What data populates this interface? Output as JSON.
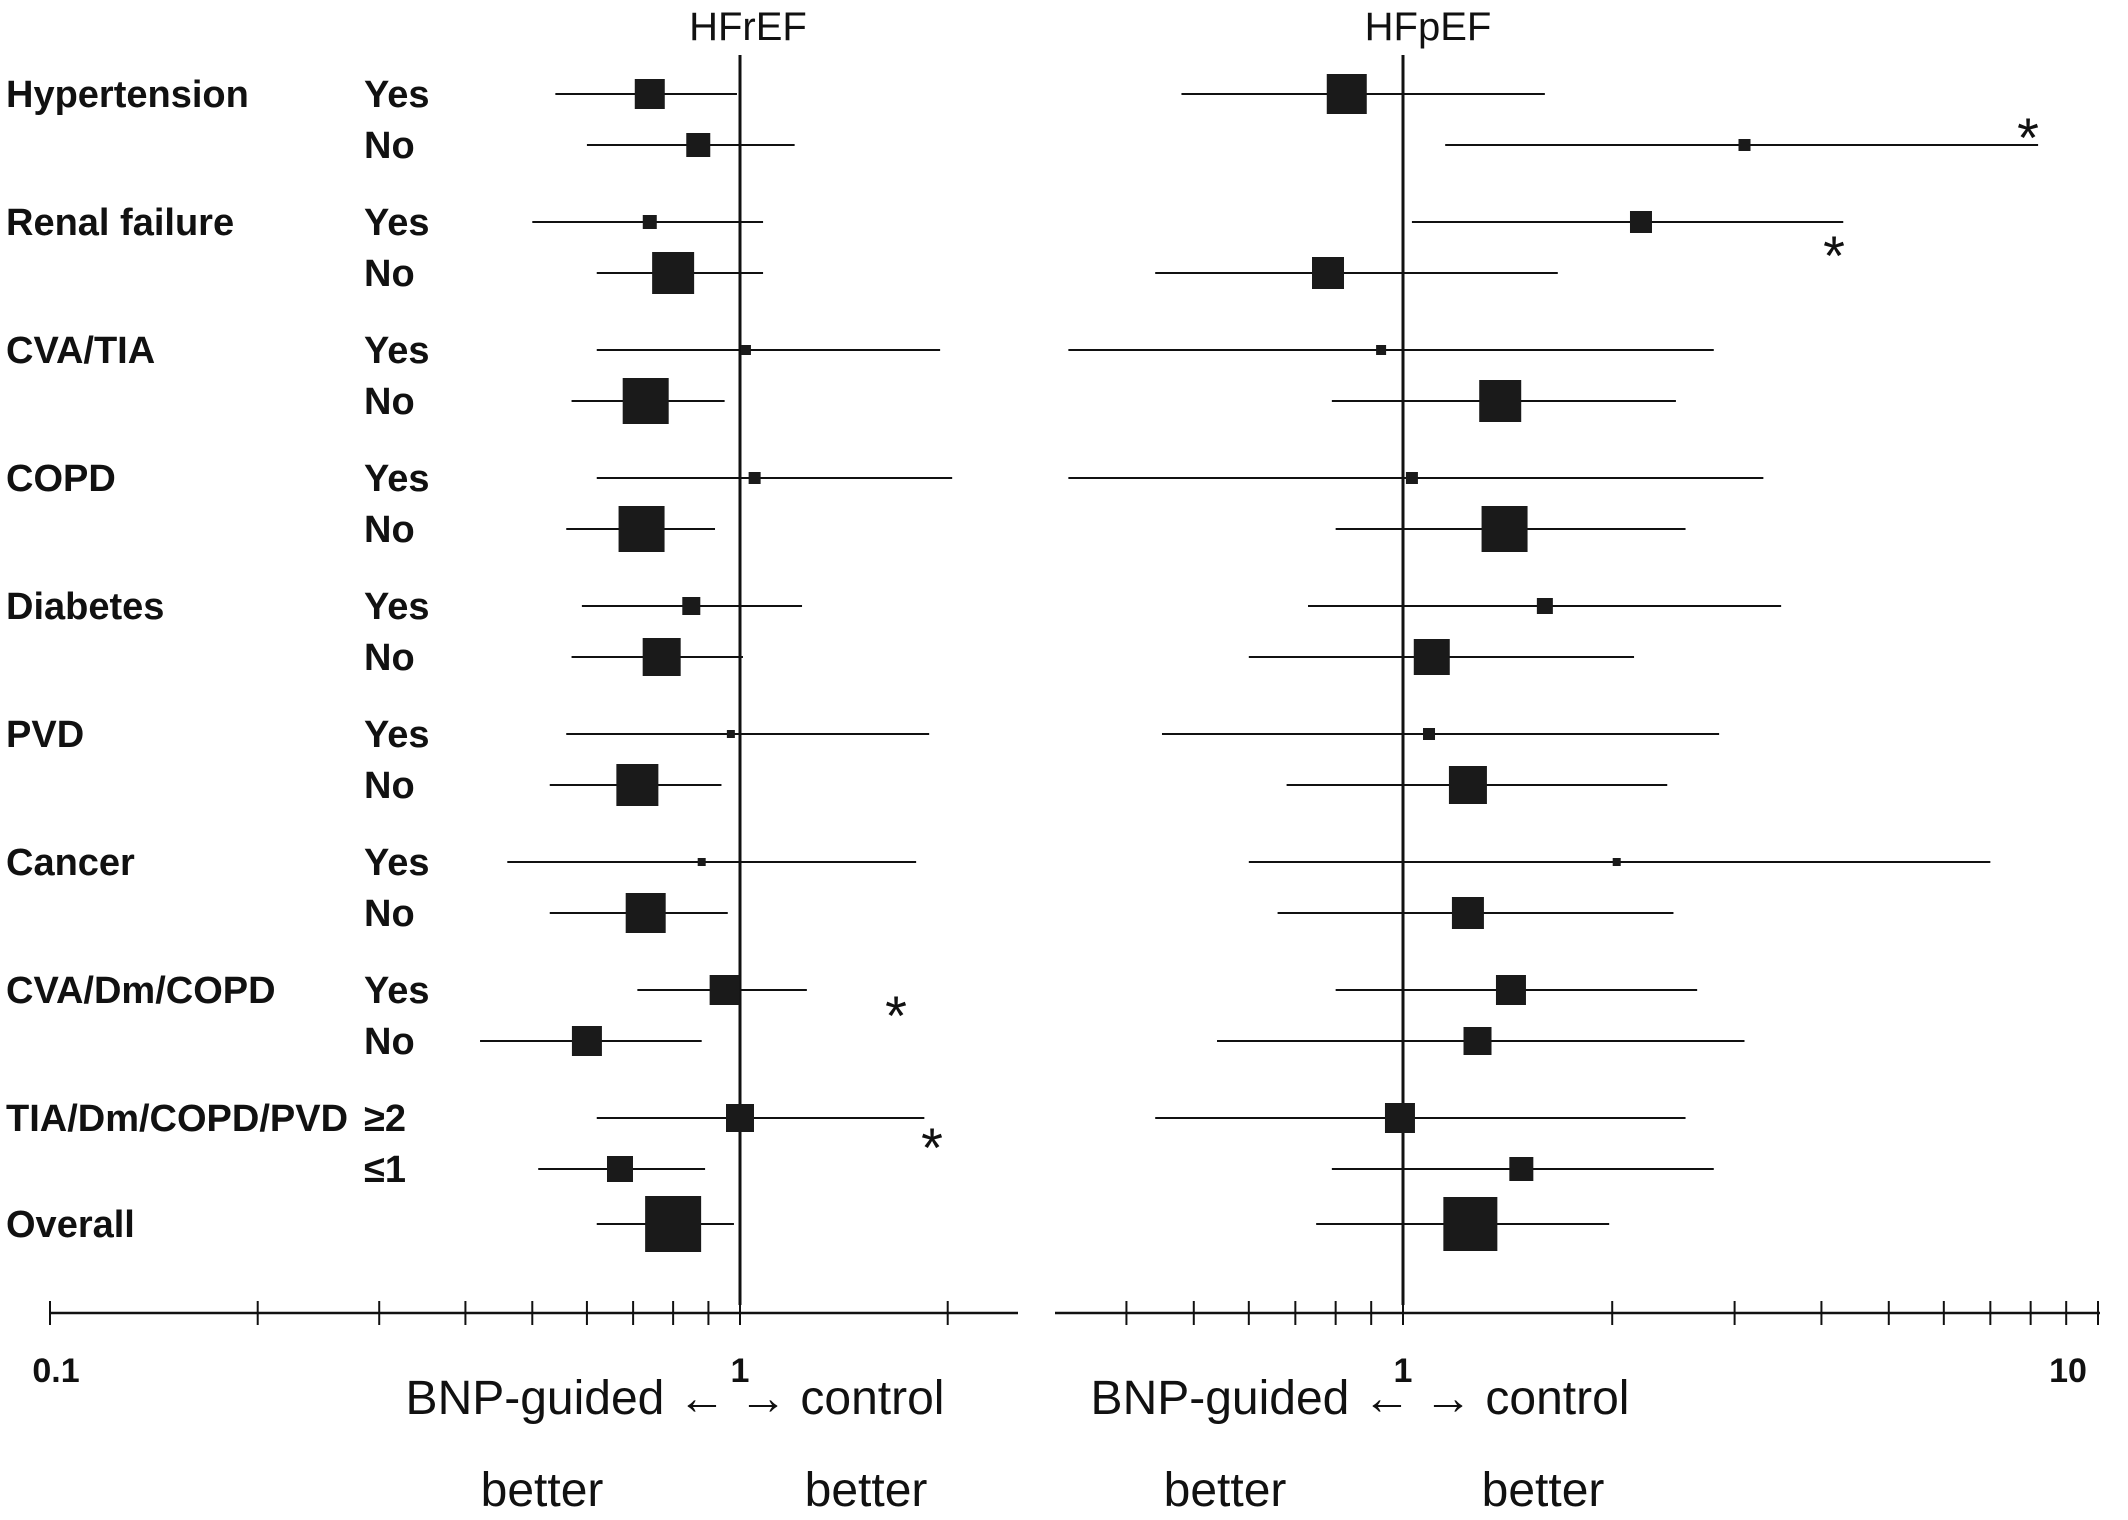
{
  "chart_data": {
    "type": "forest",
    "x_scale": "log",
    "xlim": [
      0.1,
      10
    ],
    "x_ticks": [
      {
        "value": 0.1,
        "label": "0.1"
      },
      {
        "value": 1,
        "label": "1"
      },
      {
        "value": 10,
        "label": "10"
      }
    ],
    "direction_labels": {
      "line1": "BNP-guided ← → control",
      "left_word": "better",
      "right_word": "better"
    },
    "panels": [
      {
        "title": "HFrEF"
      },
      {
        "title": "HFpEF"
      }
    ],
    "rows": [
      {
        "category": "Hypertension",
        "level": "Yes",
        "HFrEF": {
          "est": 0.74,
          "lo": 0.54,
          "hi": 0.99,
          "size": 30,
          "star": false
        },
        "HFpEF": {
          "est": 0.83,
          "lo": 0.48,
          "hi": 1.6,
          "size": 40,
          "star": false
        }
      },
      {
        "category": "",
        "level": "No",
        "HFrEF": {
          "est": 0.87,
          "lo": 0.6,
          "hi": 1.2,
          "size": 24,
          "star": false
        },
        "HFpEF": {
          "est": 3.1,
          "lo": 1.15,
          "hi": 8.2,
          "size": 12,
          "star": true
        }
      },
      {
        "category": "Renal failure",
        "level": "Yes",
        "HFrEF": {
          "est": 0.74,
          "lo": 0.5,
          "hi": 1.08,
          "size": 14,
          "star": false
        },
        "HFpEF": {
          "est": 2.2,
          "lo": 1.03,
          "hi": 4.3,
          "size": 22,
          "star": false
        }
      },
      {
        "category": "",
        "level": "No",
        "HFrEF": {
          "est": 0.8,
          "lo": 0.62,
          "hi": 1.08,
          "size": 42,
          "star": false
        },
        "HFpEF": {
          "est": 0.78,
          "lo": 0.44,
          "hi": 1.67,
          "size": 32,
          "star": true
        }
      },
      {
        "category": "CVA/TIA",
        "level": "Yes",
        "HFrEF": {
          "est": 1.02,
          "lo": 0.62,
          "hi": 1.95,
          "size": 10,
          "star": false
        },
        "HFpEF": {
          "est": 0.93,
          "lo": 0.33,
          "hi": 2.8,
          "size": 10,
          "star": false
        }
      },
      {
        "category": "",
        "level": "No",
        "HFrEF": {
          "est": 0.73,
          "lo": 0.57,
          "hi": 0.95,
          "size": 46,
          "star": false
        },
        "HFpEF": {
          "est": 1.38,
          "lo": 0.79,
          "hi": 2.47,
          "size": 42,
          "star": false
        }
      },
      {
        "category": "COPD",
        "level": "Yes",
        "HFrEF": {
          "est": 1.05,
          "lo": 0.62,
          "hi": 2.03,
          "size": 12,
          "star": false
        },
        "HFpEF": {
          "est": 1.03,
          "lo": 0.33,
          "hi": 3.3,
          "size": 12,
          "star": false
        }
      },
      {
        "category": "",
        "level": "No",
        "HFrEF": {
          "est": 0.72,
          "lo": 0.56,
          "hi": 0.92,
          "size": 46,
          "star": false
        },
        "HFpEF": {
          "est": 1.4,
          "lo": 0.8,
          "hi": 2.55,
          "size": 46,
          "star": false
        }
      },
      {
        "category": "Diabetes",
        "level": "Yes",
        "HFrEF": {
          "est": 0.85,
          "lo": 0.59,
          "hi": 1.23,
          "size": 18,
          "star": false
        },
        "HFpEF": {
          "est": 1.6,
          "lo": 0.73,
          "hi": 3.5,
          "size": 16,
          "star": false
        }
      },
      {
        "category": "",
        "level": "No",
        "HFrEF": {
          "est": 0.77,
          "lo": 0.57,
          "hi": 1.01,
          "size": 38,
          "star": false
        },
        "HFpEF": {
          "est": 1.1,
          "lo": 0.6,
          "hi": 2.15,
          "size": 36,
          "star": false
        }
      },
      {
        "category": "PVD",
        "level": "Yes",
        "HFrEF": {
          "est": 0.97,
          "lo": 0.56,
          "hi": 1.88,
          "size": 8,
          "star": false
        },
        "HFpEF": {
          "est": 1.09,
          "lo": 0.45,
          "hi": 2.85,
          "size": 12,
          "star": false
        }
      },
      {
        "category": "",
        "level": "No",
        "HFrEF": {
          "est": 0.71,
          "lo": 0.53,
          "hi": 0.94,
          "size": 42,
          "star": false
        },
        "HFpEF": {
          "est": 1.24,
          "lo": 0.68,
          "hi": 2.4,
          "size": 38,
          "star": false
        }
      },
      {
        "category": "Cancer",
        "level": "Yes",
        "HFrEF": {
          "est": 0.88,
          "lo": 0.46,
          "hi": 1.8,
          "size": 8,
          "star": false
        },
        "HFpEF": {
          "est": 2.03,
          "lo": 0.6,
          "hi": 7.0,
          "size": 8,
          "star": false
        }
      },
      {
        "category": "",
        "level": "No",
        "HFrEF": {
          "est": 0.73,
          "lo": 0.53,
          "hi": 0.96,
          "size": 40,
          "star": false
        },
        "HFpEF": {
          "est": 1.24,
          "lo": 0.66,
          "hi": 2.45,
          "size": 32,
          "star": false
        }
      },
      {
        "category": "CVA/Dm/COPD",
        "level": "Yes",
        "HFrEF": {
          "est": 0.95,
          "lo": 0.71,
          "hi": 1.25,
          "size": 30,
          "star": false
        },
        "HFpEF": {
          "est": 1.43,
          "lo": 0.8,
          "hi": 2.65,
          "size": 30,
          "star": false
        }
      },
      {
        "category": "",
        "level": "No",
        "HFrEF": {
          "est": 0.6,
          "lo": 0.42,
          "hi": 0.88,
          "size": 30,
          "star": true
        },
        "HFpEF": {
          "est": 1.28,
          "lo": 0.54,
          "hi": 3.1,
          "size": 28,
          "star": false
        }
      },
      {
        "category": "TIA/Dm/COPD/PVD",
        "level": "≥2",
        "HFrEF": {
          "est": 1.0,
          "lo": 0.62,
          "hi": 1.85,
          "size": 28,
          "star": false
        },
        "HFpEF": {
          "est": 0.99,
          "lo": 0.44,
          "hi": 2.55,
          "size": 30,
          "star": false
        }
      },
      {
        "category": "",
        "level": "≤1",
        "HFrEF": {
          "est": 0.67,
          "lo": 0.51,
          "hi": 0.89,
          "size": 26,
          "star": true
        },
        "HFpEF": {
          "est": 1.48,
          "lo": 0.79,
          "hi": 2.8,
          "size": 24,
          "star": false
        }
      },
      {
        "category": "Overall",
        "level": "",
        "HFrEF": {
          "est": 0.8,
          "lo": 0.62,
          "hi": 0.98,
          "size": 56,
          "star": false
        },
        "HFpEF": {
          "est": 1.25,
          "lo": 0.75,
          "hi": 1.98,
          "size": 54,
          "star": false
        }
      }
    ]
  }
}
